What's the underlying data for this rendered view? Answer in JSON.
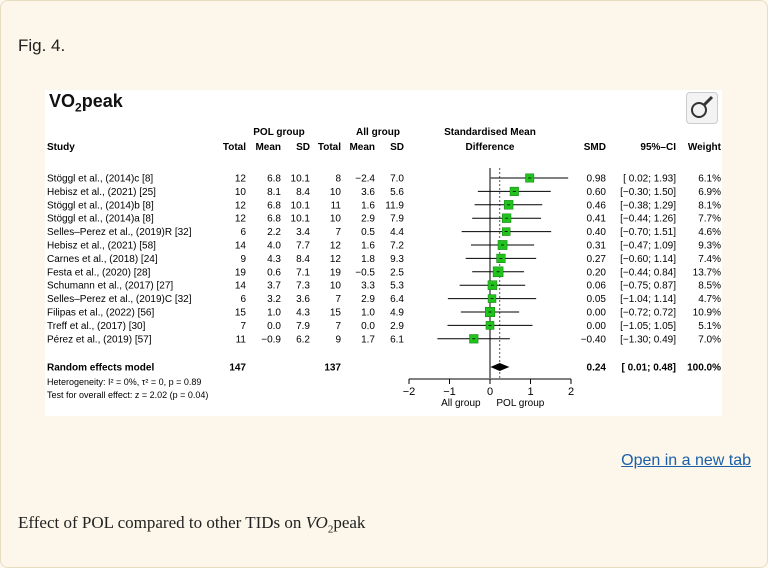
{
  "fig_label": "Fig. 4.",
  "figure_title_pre": "VO",
  "figure_title_sub": "2",
  "figure_title_post": "peak",
  "open_link": "Open in a new tab",
  "caption_pre": "Effect of POL compared to other TIDs on ",
  "caption_vo": "VO",
  "caption_sub": "2",
  "caption_post": "peak",
  "chart_data": {
    "type": "forest",
    "group_headers": {
      "pol": "POL group",
      "all": "All group",
      "smd": "Standardised Mean",
      "smd2": "Difference"
    },
    "columns": {
      "study": "Study",
      "total": "Total",
      "mean": "Mean",
      "sd": "SD",
      "total2": "Total",
      "mean2": "Mean",
      "sd2": "SD",
      "smd": "SMD",
      "ci": "95%–CI",
      "weight": "Weight"
    },
    "studies": [
      {
        "name": "Stöggl et al., (2014)c [8]",
        "pol_total": "12",
        "pol_mean": "6.8",
        "pol_sd": "10.1",
        "all_total": "8",
        "all_mean": "−2.4",
        "all_sd": "7.0",
        "smd": 0.98,
        "lo": 0.02,
        "hi": 1.93,
        "smd_text": "0.98",
        "ci_text": "[ 0.02; 1.93]",
        "weight": "6.1%",
        "w": 6.1
      },
      {
        "name": "Hebisz et al., (2021) [25]",
        "pol_total": "10",
        "pol_mean": "8.1",
        "pol_sd": "8.4",
        "all_total": "10",
        "all_mean": "3.6",
        "all_sd": "5.6",
        "smd": 0.6,
        "lo": -0.3,
        "hi": 1.5,
        "smd_text": "0.60",
        "ci_text": "[−0.30; 1.50]",
        "weight": "6.9%",
        "w": 6.9
      },
      {
        "name": "Stöggl et al., (2014)b [8]",
        "pol_total": "12",
        "pol_mean": "6.8",
        "pol_sd": "10.1",
        "all_total": "11",
        "all_mean": "1.6",
        "all_sd": "11.9",
        "smd": 0.46,
        "lo": -0.38,
        "hi": 1.29,
        "smd_text": "0.46",
        "ci_text": "[−0.38; 1.29]",
        "weight": "8.1%",
        "w": 8.1
      },
      {
        "name": "Stöggl et al., (2014)a [8]",
        "pol_total": "12",
        "pol_mean": "6.8",
        "pol_sd": "10.1",
        "all_total": "10",
        "all_mean": "2.9",
        "all_sd": "7.9",
        "smd": 0.41,
        "lo": -0.44,
        "hi": 1.26,
        "smd_text": "0.41",
        "ci_text": "[−0.44; 1.26]",
        "weight": "7.7%",
        "w": 7.7
      },
      {
        "name": "Selles–Perez et al., (2019)R [32]",
        "pol_total": "6",
        "pol_mean": "2.2",
        "pol_sd": "3.4",
        "all_total": "7",
        "all_mean": "0.5",
        "all_sd": "4.4",
        "smd": 0.4,
        "lo": -0.7,
        "hi": 1.51,
        "smd_text": "0.40",
        "ci_text": "[−0.70; 1.51]",
        "weight": "4.6%",
        "w": 4.6
      },
      {
        "name": "Hebisz et al., (2021) [58]",
        "pol_total": "14",
        "pol_mean": "4.0",
        "pol_sd": "7.7",
        "all_total": "12",
        "all_mean": "1.6",
        "all_sd": "7.2",
        "smd": 0.31,
        "lo": -0.47,
        "hi": 1.09,
        "smd_text": "0.31",
        "ci_text": "[−0.47; 1.09]",
        "weight": "9.3%",
        "w": 9.3
      },
      {
        "name": "Carnes et al., (2018) [24]",
        "pol_total": "9",
        "pol_mean": "4.3",
        "pol_sd": "8.4",
        "all_total": "12",
        "all_mean": "1.8",
        "all_sd": "9.3",
        "smd": 0.27,
        "lo": -0.6,
        "hi": 1.14,
        "smd_text": "0.27",
        "ci_text": "[−0.60; 1.14]",
        "weight": "7.4%",
        "w": 7.4
      },
      {
        "name": "Festa et al., (2020) [28]",
        "pol_total": "19",
        "pol_mean": "0.6",
        "pol_sd": "7.1",
        "all_total": "19",
        "all_mean": "−0.5",
        "all_sd": "2.5",
        "smd": 0.2,
        "lo": -0.44,
        "hi": 0.84,
        "smd_text": "0.20",
        "ci_text": "[−0.44; 0.84]",
        "weight": "13.7%",
        "w": 13.7
      },
      {
        "name": "Schumann et al., (2017) [27]",
        "pol_total": "14",
        "pol_mean": "3.7",
        "pol_sd": "7.3",
        "all_total": "10",
        "all_mean": "3.3",
        "all_sd": "5.3",
        "smd": 0.06,
        "lo": -0.75,
        "hi": 0.87,
        "smd_text": "0.06",
        "ci_text": "[−0.75; 0.87]",
        "weight": "8.5%",
        "w": 8.5
      },
      {
        "name": "Selles–Perez et al., (2019)C [32]",
        "pol_total": "6",
        "pol_mean": "3.2",
        "pol_sd": "3.6",
        "all_total": "7",
        "all_mean": "2.9",
        "all_sd": "6.4",
        "smd": 0.05,
        "lo": -1.04,
        "hi": 1.14,
        "smd_text": "0.05",
        "ci_text": "[−1.04; 1.14]",
        "weight": "4.7%",
        "w": 4.7
      },
      {
        "name": "Filipas et al., (2022) [56]",
        "pol_total": "15",
        "pol_mean": "1.0",
        "pol_sd": "4.3",
        "all_total": "15",
        "all_mean": "1.0",
        "all_sd": "4.9",
        "smd": 0.0,
        "lo": -0.72,
        "hi": 0.72,
        "smd_text": "0.00",
        "ci_text": "[−0.72; 0.72]",
        "weight": "10.9%",
        "w": 10.9
      },
      {
        "name": "Treff et al., (2017) [30]",
        "pol_total": "7",
        "pol_mean": "0.0",
        "pol_sd": "7.9",
        "all_total": "7",
        "all_mean": "0.0",
        "all_sd": "2.9",
        "smd": 0.0,
        "lo": -1.05,
        "hi": 1.05,
        "smd_text": "0.00",
        "ci_text": "[−1.05; 1.05]",
        "weight": "5.1%",
        "w": 5.1
      },
      {
        "name": "Pérez et al., (2019) [57]",
        "pol_total": "11",
        "pol_mean": "−0.9",
        "pol_sd": "6.2",
        "all_total": "9",
        "all_mean": "1.7",
        "all_sd": "6.1",
        "smd": -0.4,
        "lo": -1.3,
        "hi": 0.49,
        "smd_text": "−0.40",
        "ci_text": "[−1.30; 0.49]",
        "weight": "7.0%",
        "w": 7.0
      }
    ],
    "pooled": {
      "name": "Random effects model",
      "pol_total": "147",
      "all_total": "137",
      "smd": 0.24,
      "lo": 0.01,
      "hi": 0.48,
      "smd_text": "0.24",
      "ci_text": "[ 0.01; 0.48]",
      "weight": "100.0%"
    },
    "heterogeneity": "Heterogeneity: I² = 0%, τ² = 0, p = 0.89",
    "overall_test": "Test for overall effect: z = 2.02 (p = 0.04)",
    "xlim": [
      -2,
      2
    ],
    "ticks": [
      -2,
      -1,
      0,
      1,
      2
    ],
    "tick_labels": [
      "−2",
      "−1",
      "0",
      "1",
      "2"
    ],
    "x_left_label": "All group",
    "x_right_label": "POL group",
    "colors": {
      "box": "#22c31d",
      "line": "#000000",
      "dashed": "#555555"
    }
  }
}
